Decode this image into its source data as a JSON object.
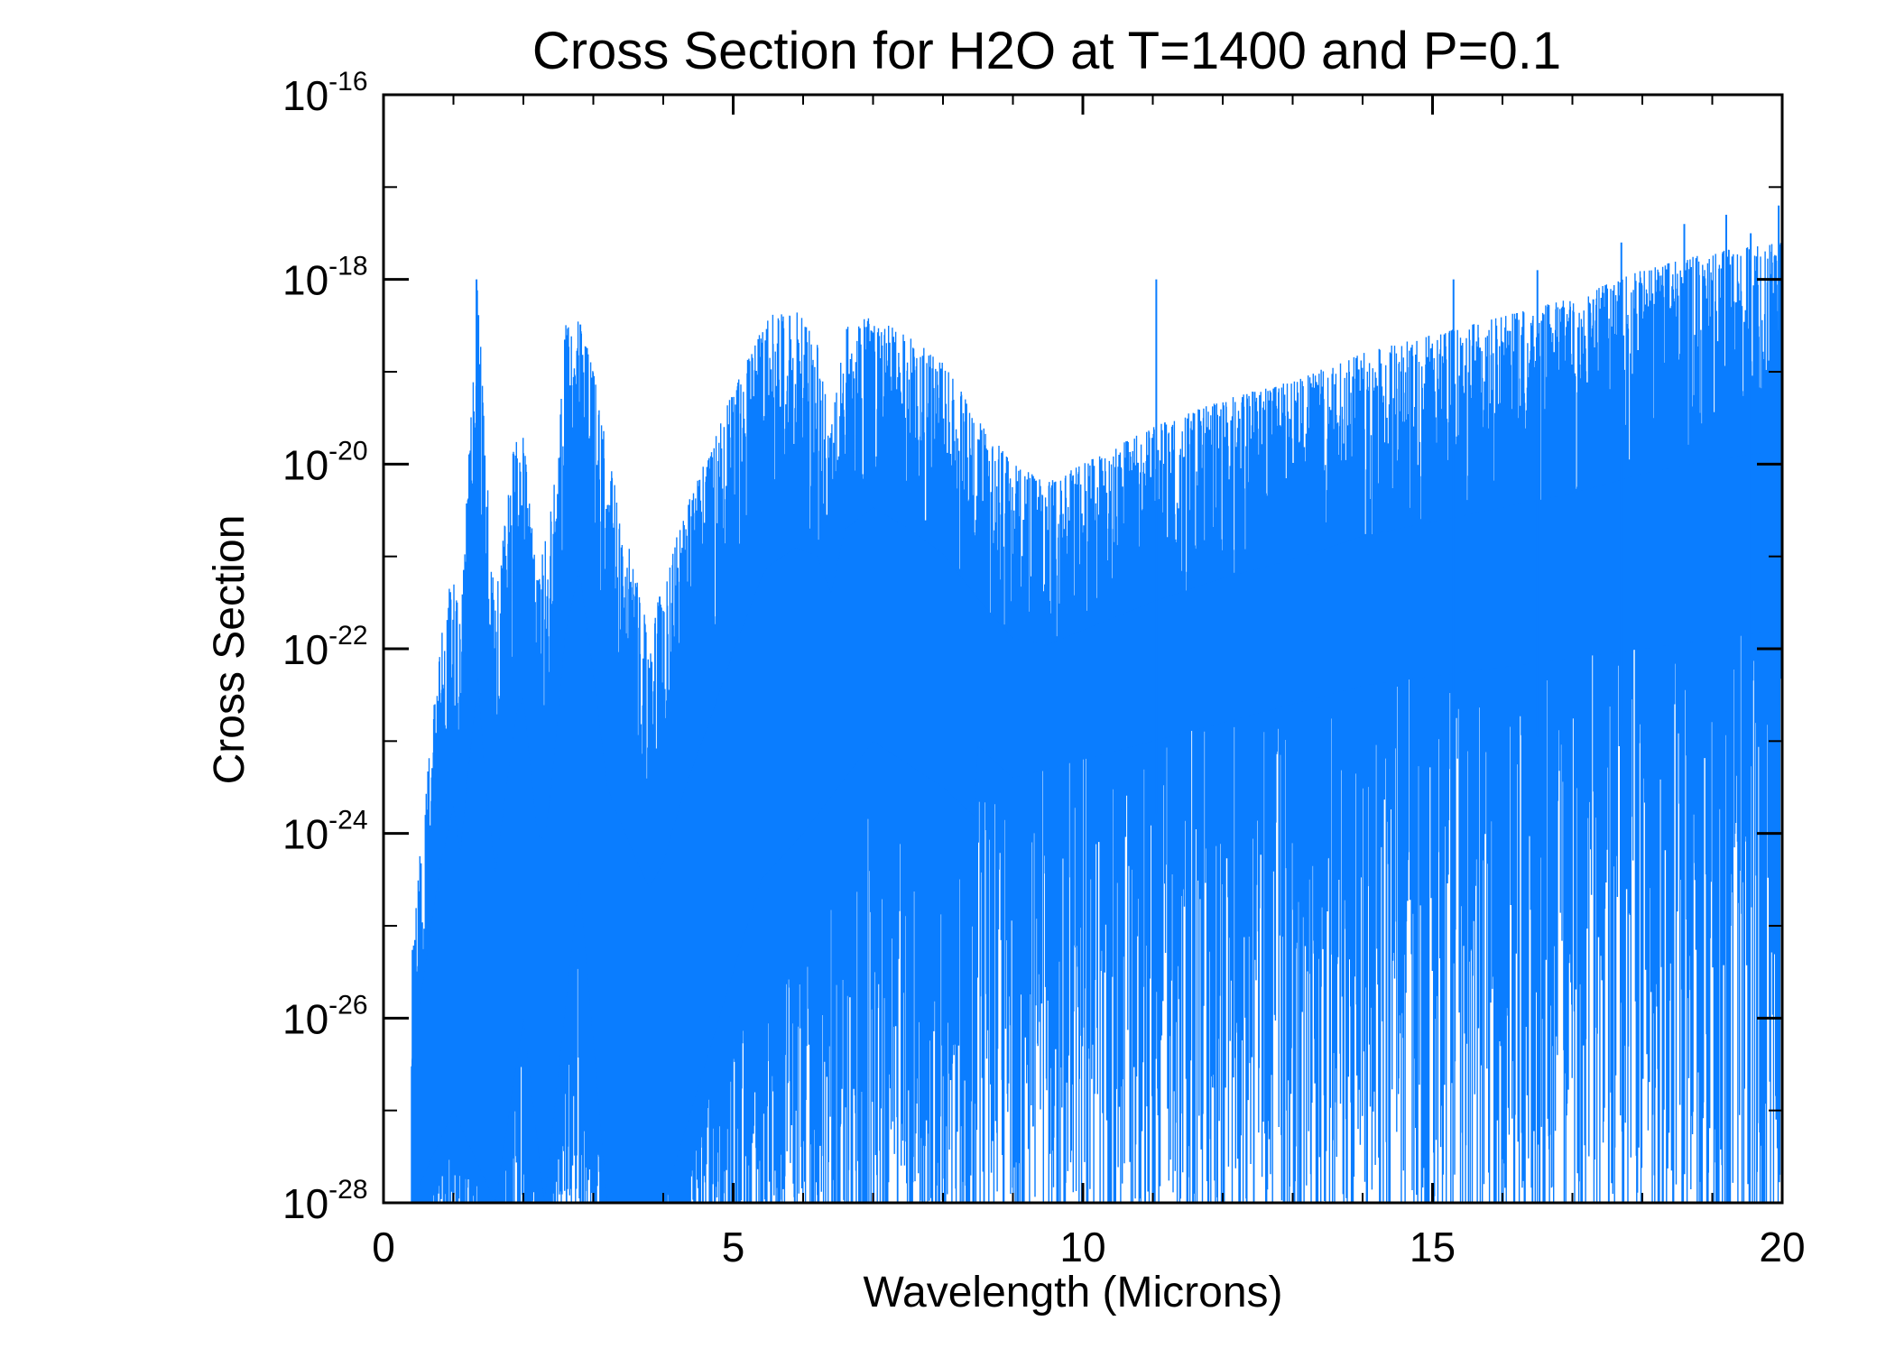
{
  "chart_data": {
    "type": "line",
    "title": "Cross Section for H2O at T=1400 and P=0.1",
    "xlabel": "Wavelength (Microns)",
    "ylabel": "Cross Section",
    "x_range": [
      0,
      20
    ],
    "y_range_log10": [
      -28,
      -16
    ],
    "y_scale": "log",
    "x_ticks": [
      "0",
      "5",
      "10",
      "15",
      "20"
    ],
    "y_ticks": [
      {
        "base": "10",
        "exp": "-16"
      },
      {
        "base": "10",
        "exp": "-18"
      },
      {
        "base": "10",
        "exp": "-20"
      },
      {
        "base": "10",
        "exp": "-22"
      },
      {
        "base": "10",
        "exp": "-24"
      },
      {
        "base": "10",
        "exp": "-26"
      },
      {
        "base": "10",
        "exp": "-28"
      }
    ],
    "grid": false,
    "legend": "none",
    "series": [
      {
        "name": "H2O cross section",
        "color": "#0a7dff",
        "x_start": 0.4,
        "x_end": 20,
        "upper_envelope_log10": [
          [
            0.4,
            -25.2
          ],
          [
            0.6,
            -23.6
          ],
          [
            0.8,
            -22.0
          ],
          [
            1.0,
            -21.0
          ],
          [
            1.1,
            -21.8
          ],
          [
            1.2,
            -20.2
          ],
          [
            1.35,
            -18.0
          ],
          [
            1.45,
            -19.8
          ],
          [
            1.6,
            -21.5
          ],
          [
            1.8,
            -20.2
          ],
          [
            1.9,
            -19.6
          ],
          [
            2.0,
            -19.7
          ],
          [
            2.2,
            -21.3
          ],
          [
            2.4,
            -20.4
          ],
          [
            2.6,
            -18.5
          ],
          [
            2.8,
            -18.4
          ],
          [
            3.0,
            -19.0
          ],
          [
            3.3,
            -20.2
          ],
          [
            3.6,
            -21.2
          ],
          [
            3.8,
            -21.8
          ],
          [
            4.0,
            -21.3
          ],
          [
            4.3,
            -20.5
          ],
          [
            4.7,
            -19.8
          ],
          [
            5.0,
            -19.2
          ],
          [
            5.5,
            -18.4
          ],
          [
            5.9,
            -18.3
          ],
          [
            6.2,
            -18.7
          ],
          [
            6.4,
            -19.6
          ],
          [
            6.6,
            -18.5
          ],
          [
            7.0,
            -18.4
          ],
          [
            7.5,
            -18.6
          ],
          [
            8.0,
            -18.9
          ],
          [
            8.5,
            -19.5
          ],
          [
            9.0,
            -20.0
          ],
          [
            9.5,
            -20.2
          ],
          [
            10.0,
            -20.0
          ],
          [
            11.0,
            -19.6
          ],
          [
            12.0,
            -19.3
          ],
          [
            13.0,
            -19.1
          ],
          [
            14.0,
            -18.8
          ],
          [
            15.0,
            -18.6
          ],
          [
            16.0,
            -18.4
          ],
          [
            17.0,
            -18.2
          ],
          [
            18.0,
            -17.9
          ],
          [
            19.0,
            -17.7
          ],
          [
            20.0,
            -17.6
          ]
        ],
        "solid_fill_to_log10": [
          [
            0.4,
            -28.0
          ],
          [
            1.0,
            -27.0
          ],
          [
            1.6,
            -28.0
          ],
          [
            2.0,
            -26.0
          ],
          [
            2.3,
            -28.0
          ],
          [
            2.8,
            -24.5
          ],
          [
            3.2,
            -28.0
          ],
          [
            4.0,
            -28.0
          ],
          [
            4.6,
            -26.5
          ],
          [
            5.4,
            -24.5
          ],
          [
            6.0,
            -24.0
          ],
          [
            7.0,
            -23.0
          ],
          [
            8.0,
            -23.5
          ],
          [
            9.0,
            -24.2
          ],
          [
            10.0,
            -24.0
          ],
          [
            12.0,
            -23.6
          ],
          [
            14.0,
            -23.2
          ],
          [
            16.0,
            -23.0
          ],
          [
            18.0,
            -22.8
          ],
          [
            20.0,
            -22.6
          ]
        ],
        "spike_peaks": [
          [
            1.33,
            -18.0
          ],
          [
            11.05,
            -18.0
          ],
          [
            19.2,
            -17.3
          ],
          [
            19.95,
            -17.2
          ],
          [
            19.55,
            -17.5
          ],
          [
            18.6,
            -17.4
          ],
          [
            17.7,
            -17.6
          ],
          [
            16.5,
            -17.9
          ],
          [
            15.3,
            -18.0
          ]
        ]
      }
    ]
  }
}
